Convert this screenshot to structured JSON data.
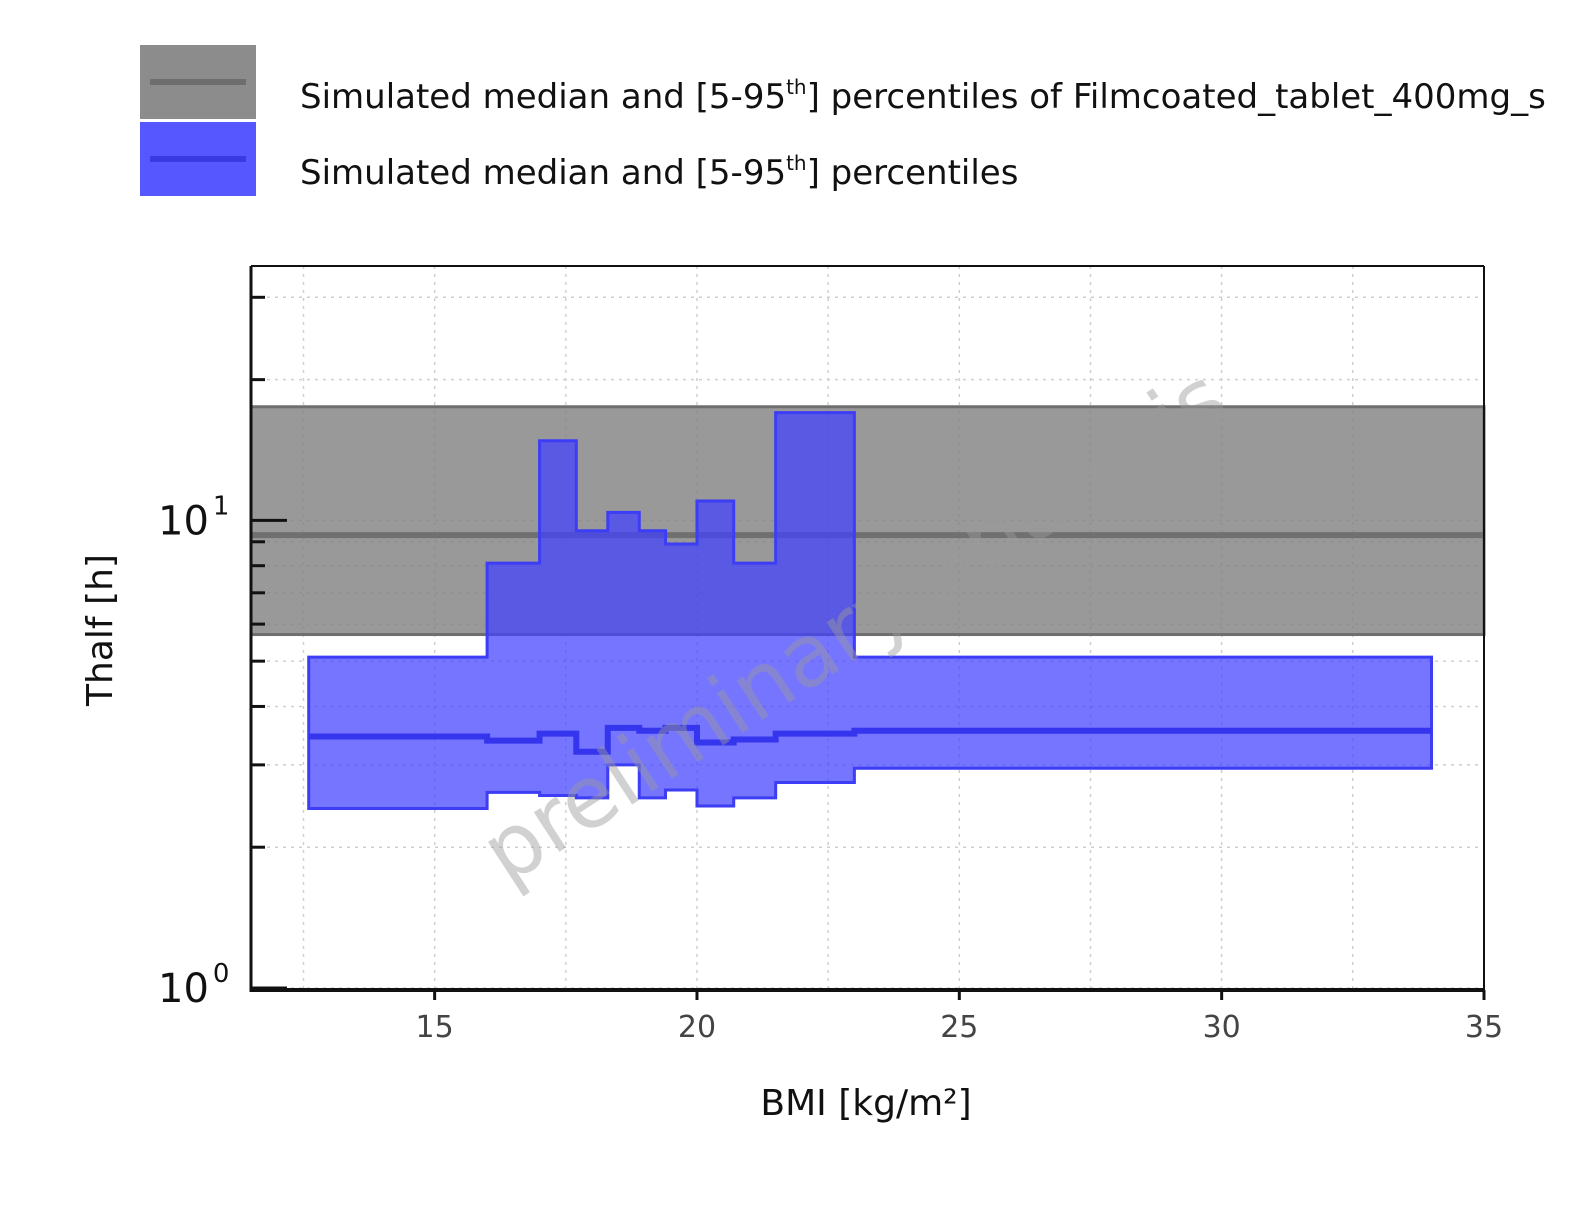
{
  "chart_data": {
    "type": "area",
    "title": "",
    "xlabel": "BMI [kg/m²]",
    "ylabel": "Thalf [h]",
    "xlim": [
      11.5,
      35
    ],
    "ylim": [
      0.99,
      35
    ],
    "y_scale": "log",
    "grid": true,
    "x_ticks": [
      15,
      20,
      25,
      30,
      35
    ],
    "y_ticks": [
      {
        "value": 1,
        "base": "10",
        "exp": "0"
      },
      {
        "value": 10,
        "base": "10",
        "exp": "1"
      }
    ],
    "watermark": "preliminary analysis",
    "legend": {
      "position": "top",
      "entries": [
        {
          "prefix": "Simulated median and [5-95",
          "sup": "th",
          "suffix": "] percentiles of Filmcoated_tablet_400mg_s"
        },
        {
          "prefix": "Simulated median and [5-95",
          "sup": "th",
          "suffix": "] percentiles"
        }
      ]
    },
    "series": [
      {
        "color": "#808080",
        "fill_opacity": 0.8,
        "x_range": [
          11.5,
          35
        ],
        "median": 9.3,
        "lower": 5.7,
        "upper": 17.5
      },
      {
        "color": "#4040ff",
        "fill_opacity": 0.72,
        "bins": [
          {
            "x0": 12.6,
            "x1": 16.0,
            "median": 3.45,
            "lower": 2.42,
            "upper": 5.1
          },
          {
            "x0": 16.0,
            "x1": 17.0,
            "median": 3.38,
            "lower": 2.62,
            "upper": 8.1
          },
          {
            "x0": 17.0,
            "x1": 17.7,
            "median": 3.5,
            "lower": 2.58,
            "upper": 14.8
          },
          {
            "x0": 17.7,
            "x1": 18.3,
            "median": 3.2,
            "lower": 2.55,
            "upper": 9.5
          },
          {
            "x0": 18.3,
            "x1": 18.9,
            "median": 3.6,
            "lower": 3.0,
            "upper": 10.4
          },
          {
            "x0": 18.9,
            "x1": 19.4,
            "median": 3.55,
            "lower": 2.55,
            "upper": 9.5
          },
          {
            "x0": 19.4,
            "x1": 20.0,
            "median": 3.6,
            "lower": 2.65,
            "upper": 8.9
          },
          {
            "x0": 20.0,
            "x1": 20.7,
            "median": 3.35,
            "lower": 2.45,
            "upper": 11.0
          },
          {
            "x0": 20.7,
            "x1": 21.5,
            "median": 3.4,
            "lower": 2.55,
            "upper": 8.1
          },
          {
            "x0": 21.5,
            "x1": 23.0,
            "median": 3.5,
            "lower": 2.75,
            "upper": 17.0
          },
          {
            "x0": 23.0,
            "x1": 34.0,
            "median": 3.55,
            "lower": 2.95,
            "upper": 5.1
          }
        ]
      }
    ]
  }
}
